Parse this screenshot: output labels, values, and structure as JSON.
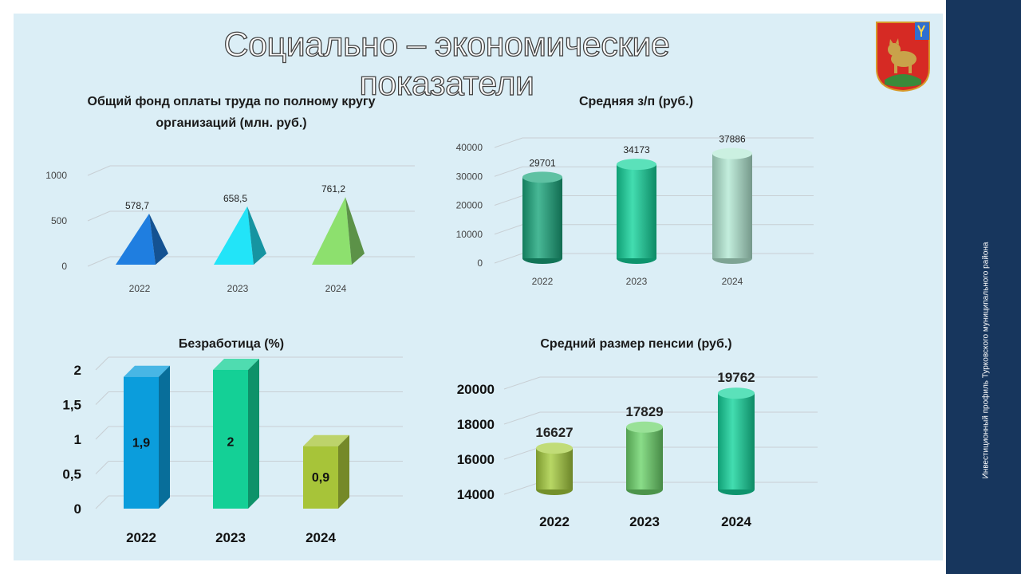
{
  "slide": {
    "title": "Социально – экономические  показатели",
    "side_text": "Инвестиционный профиль Турковского муниципального района"
  },
  "colors": {
    "panel": "#dbeef6",
    "sidebar": "#17365d"
  },
  "chart_data": [
    {
      "id": "fund",
      "type": "bar",
      "style": "pyramid-3d",
      "title": "Общий фонд оплаты труда по полному кругу организаций (млн. руб.)",
      "categories": [
        "2022",
        "2023",
        "2024"
      ],
      "series": [
        {
          "values": [
            578.7,
            658.5,
            761.2
          ]
        }
      ],
      "data_labels": [
        "578,7",
        "658,5",
        "761,2"
      ],
      "yticks": [
        "0",
        "500",
        "1000"
      ],
      "ylim": [
        0,
        1000
      ],
      "grid": true,
      "colors": [
        "#1f7ee0",
        "#22e4f8",
        "#8de06e"
      ]
    },
    {
      "id": "salary",
      "type": "bar",
      "style": "cylinder-3d",
      "title": "Средняя з/п (руб.)",
      "categories": [
        "2022",
        "2023",
        "2024"
      ],
      "series": [
        {
          "values": [
            29701,
            34173,
            37886
          ]
        }
      ],
      "data_labels": [
        "29701",
        "34173",
        "37886"
      ],
      "yticks": [
        "0",
        "10000",
        "20000",
        "30000",
        "40000"
      ],
      "ylim": [
        0,
        40000
      ],
      "grid": true,
      "colors": [
        "#1aa67c",
        "#14d49c",
        "#b4ead4"
      ]
    },
    {
      "id": "unemployment",
      "type": "bar",
      "style": "box-3d",
      "title": "Безработица (%)",
      "categories": [
        "2022",
        "2023",
        "2024"
      ],
      "series": [
        {
          "values": [
            1.9,
            2,
            0.9
          ]
        }
      ],
      "data_labels": [
        "1,9",
        "2",
        "0,9"
      ],
      "yticks": [
        "0",
        "0,5",
        "1",
        "1,5",
        "2"
      ],
      "ylim": [
        0,
        2
      ],
      "grid": true,
      "colors": [
        "#0b9ddc",
        "#14d096",
        "#a7c439"
      ]
    },
    {
      "id": "pension",
      "type": "bar",
      "style": "cylinder-3d",
      "title": "Средний размер пенсии (руб.)",
      "categories": [
        "2022",
        "2023",
        "2024"
      ],
      "series": [
        {
          "values": [
            16627,
            17829,
            19762
          ]
        }
      ],
      "data_labels": [
        "16627",
        "17829",
        "19762"
      ],
      "yticks": [
        "14000",
        "16000",
        "18000",
        "20000"
      ],
      "ylim": [
        14000,
        20000
      ],
      "grid": true,
      "colors": [
        "#a6cd3e",
        "#6dd46b",
        "#14d49c"
      ]
    }
  ]
}
